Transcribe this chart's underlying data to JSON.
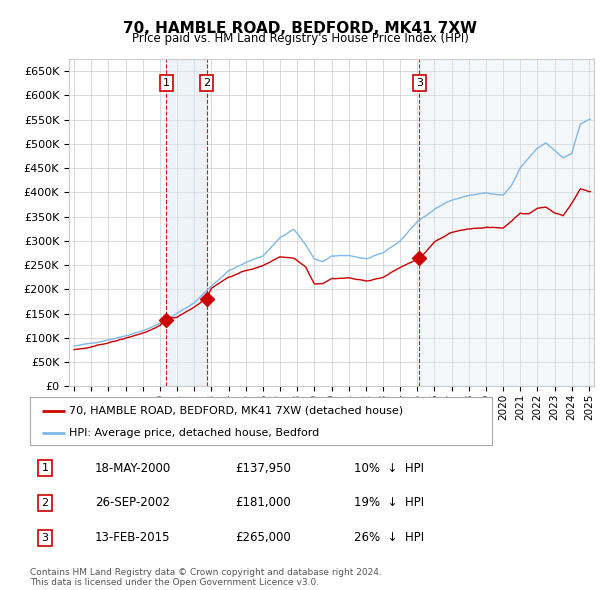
{
  "title": "70, HAMBLE ROAD, BEDFORD, MK41 7XW",
  "subtitle": "Price paid vs. HM Land Registry's House Price Index (HPI)",
  "hpi_label": "HPI: Average price, detached house, Bedford",
  "price_label": "70, HAMBLE ROAD, BEDFORD, MK41 7XW (detached house)",
  "ylabel_ticks": [
    "£0",
    "£50K",
    "£100K",
    "£150K",
    "£200K",
    "£250K",
    "£300K",
    "£350K",
    "£400K",
    "£450K",
    "£500K",
    "£550K",
    "£600K",
    "£650K"
  ],
  "ytick_values": [
    0,
    50000,
    100000,
    150000,
    200000,
    250000,
    300000,
    350000,
    400000,
    450000,
    500000,
    550000,
    600000,
    650000
  ],
  "ylim": [
    0,
    675000
  ],
  "xlim_left": 1994.7,
  "xlim_right": 2025.3,
  "transactions": [
    {
      "num": 1,
      "date": "18-MAY-2000",
      "price": 137950,
      "pct": "10%",
      "dir": "↓",
      "year": 2000.37
    },
    {
      "num": 2,
      "date": "26-SEP-2002",
      "price": 181000,
      "pct": "19%",
      "dir": "↓",
      "year": 2002.73
    },
    {
      "num": 3,
      "date": "13-FEB-2015",
      "price": 265000,
      "pct": "26%",
      "dir": "↓",
      "year": 2015.12
    }
  ],
  "footer1": "Contains HM Land Registry data © Crown copyright and database right 2024.",
  "footer2": "This data is licensed under the Open Government Licence v3.0.",
  "hpi_color": "#7fb8e8",
  "price_color": "#cc0000",
  "box_color": "#cc0000",
  "background_color": "#ffffff",
  "grid_color": "#cccccc",
  "shade_color": "#dde8f5"
}
